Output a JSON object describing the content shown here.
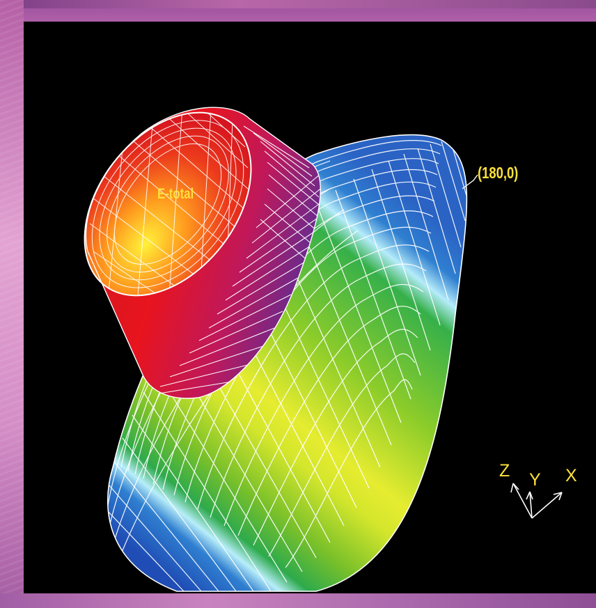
{
  "figure": {
    "surface_label": "E-total",
    "point_label": "(180,0)",
    "axes": {
      "z": "Z",
      "y": "Y",
      "x": "X"
    }
  },
  "colors": {
    "background": "#000000",
    "mesh": "#ffffff",
    "label": "#ffd200",
    "colormap": [
      "#1f4db5",
      "#2f7fd0",
      "#a8e6f8",
      "#27a64a",
      "#8ccc2a",
      "#e8ec2a",
      "#ff9a1e",
      "#e8141e",
      "#6c2a8c"
    ]
  }
}
